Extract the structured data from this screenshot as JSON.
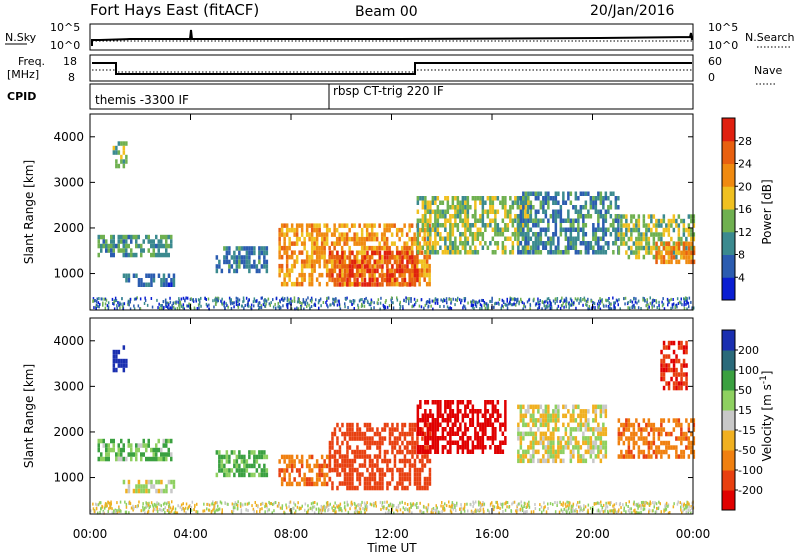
{
  "header": {
    "station": "Fort Hays East (fitACF)",
    "beam": "Beam 00",
    "date": "20/Jan/2016"
  },
  "summary": {
    "nsky_label": "N.Sky",
    "nsearch_label": "N.Search",
    "noise_ticks_left": [
      "10^5",
      "10^0"
    ],
    "noise_ticks_right": [
      "10^5",
      "10^0"
    ],
    "freq_label_1": "Freq.",
    "freq_label_2": "[MHz]",
    "freq_ticks": [
      "18",
      "8"
    ],
    "nave_label": "Nave",
    "nave_ticks": [
      "60",
      "0"
    ],
    "cpid_label": "CPID",
    "cpid_segments": [
      {
        "label": "themis -3300 IF",
        "start_hour": 0.0
      },
      {
        "label": "rbsp CT-trig 220 IF",
        "start_hour": 9.45
      }
    ]
  },
  "chart_data": [
    {
      "type": "heatmap",
      "name": "power",
      "ylabel": "Slant Range [km]",
      "xlabel": "",
      "yticks": [
        "1000",
        "2000",
        "3000",
        "4000"
      ],
      "ylim": [
        200,
        4500
      ],
      "xlim": [
        0,
        24
      ],
      "colorbar": {
        "label": "Power [dB]",
        "ticks": [
          "4",
          "8",
          "12",
          "16",
          "20",
          "24",
          "28"
        ],
        "range": [
          0,
          30
        ],
        "colors": [
          "#0a1ed2",
          "#2b5cb0",
          "#3b8a8f",
          "#6fb050",
          "#f0c020",
          "#f08a10",
          "#e86010",
          "#e02010"
        ]
      },
      "echo_regions": [
        {
          "t0": 0.3,
          "t1": 3.2,
          "r0": 1450,
          "r1": 1850,
          "level": 10
        },
        {
          "t0": 1.3,
          "t1": 3.3,
          "r0": 800,
          "r1": 1000,
          "level": 6
        },
        {
          "t0": 5.0,
          "t1": 7.0,
          "r0": 1100,
          "r1": 1600,
          "level": 8
        },
        {
          "t0": 0.9,
          "t1": 1.4,
          "r0": 3400,
          "r1": 3900,
          "level": 12
        },
        {
          "t0": 7.5,
          "t1": 13.5,
          "r0": 800,
          "r1": 2100,
          "level": 20
        },
        {
          "t0": 9.5,
          "t1": 13.0,
          "r0": 800,
          "r1": 1500,
          "level": 26
        },
        {
          "t0": 13.0,
          "t1": 17.5,
          "r0": 1500,
          "r1": 2700,
          "level": 14
        },
        {
          "t0": 17.0,
          "t1": 21.0,
          "r0": 1500,
          "r1": 2800,
          "level": 9
        },
        {
          "t0": 21.0,
          "t1": 24.0,
          "r0": 1400,
          "r1": 2300,
          "level": 14
        },
        {
          "t0": 22.5,
          "t1": 24.0,
          "r0": 1300,
          "r1": 1700,
          "level": 22
        }
      ]
    },
    {
      "type": "heatmap",
      "name": "velocity",
      "ylabel": "Slant Range [km]",
      "xlabel": "Time UT",
      "yticks": [
        "1000",
        "2000",
        "3000",
        "4000"
      ],
      "ylim": [
        200,
        4500
      ],
      "xlim": [
        0,
        24
      ],
      "xticks": [
        "00:00",
        "04:00",
        "08:00",
        "12:00",
        "16:00",
        "20:00",
        "00:00"
      ],
      "colorbar": {
        "label": "Velocity [m s^-1]",
        "ticks": [
          "200",
          "100",
          "50",
          "15",
          "-15",
          "-50",
          "-100",
          "-200"
        ],
        "colors": [
          "#1a2fb0",
          "#2a6a7a",
          "#3aa040",
          "#8ed060",
          "#c8c8c8",
          "#f0b020",
          "#f08010",
          "#e84010",
          "#e00000"
        ]
      },
      "echo_regions": [
        {
          "t0": 0.3,
          "t1": 3.2,
          "r0": 1450,
          "r1": 1850,
          "value": 30
        },
        {
          "t0": 1.3,
          "t1": 3.3,
          "r0": 750,
          "r1": 950,
          "value": 0
        },
        {
          "t0": 5.0,
          "t1": 7.0,
          "r0": 1100,
          "r1": 1600,
          "value": 40
        },
        {
          "t0": 0.9,
          "t1": 1.4,
          "r0": 3400,
          "r1": 3900,
          "value": 180
        },
        {
          "t0": 7.5,
          "t1": 9.5,
          "r0": 900,
          "r1": 1500,
          "value": -60
        },
        {
          "t0": 9.5,
          "t1": 13.5,
          "r0": 800,
          "r1": 2200,
          "value": -110
        },
        {
          "t0": 13.0,
          "t1": 16.5,
          "r0": 1600,
          "r1": 2700,
          "value": -200
        },
        {
          "t0": 17.0,
          "t1": 20.5,
          "r0": 1400,
          "r1": 2600,
          "value": 0
        },
        {
          "t0": 21.0,
          "t1": 24.0,
          "r0": 1500,
          "r1": 2300,
          "value": -60
        },
        {
          "t0": 22.7,
          "t1": 23.7,
          "r0": 3000,
          "r1": 4000,
          "value": -150
        }
      ]
    }
  ]
}
